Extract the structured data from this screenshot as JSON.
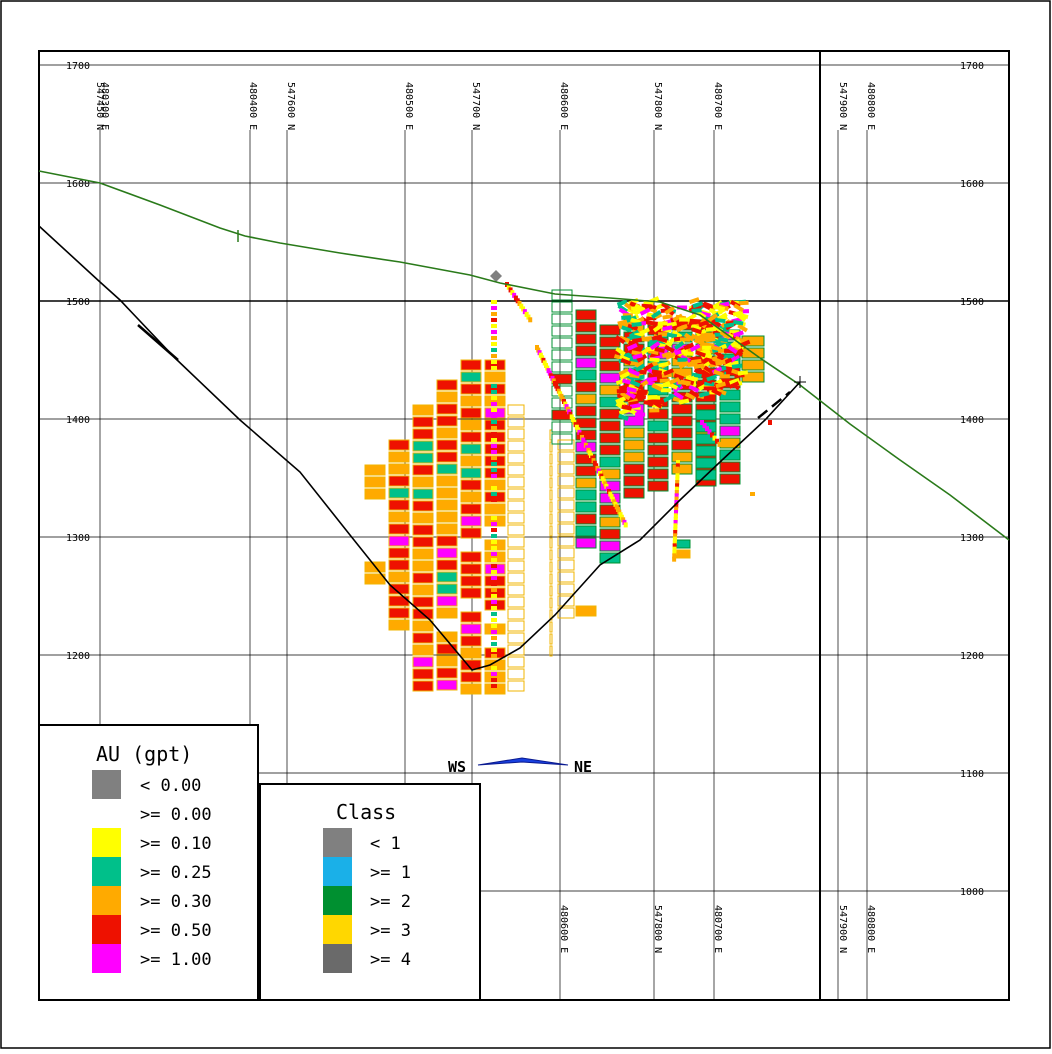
{
  "elevations": [
    "1700",
    "1600",
    "1500",
    "1400",
    "1300",
    "1200",
    "1100",
    "1000"
  ],
  "top_grid_labels": [
    "480300 E",
    "547450 N",
    "480400 E",
    "547600 N",
    "480500 E",
    "547700 N",
    "480600 E",
    "547800 N",
    "480700 E",
    "547900 N",
    "480800 E"
  ],
  "bottom_grid_labels": [
    "480600 E",
    "547800 N",
    "480700 E",
    "547900 N",
    "480800 E"
  ],
  "orientation": {
    "left": "WS",
    "right": "NE"
  },
  "au_legend": {
    "title": "AU (gpt)",
    "entries": [
      {
        "label": "<  0.00",
        "color": "#808080"
      },
      {
        "label": ">= 0.00",
        "color": "#ffffff"
      },
      {
        "label": ">= 0.10",
        "color": "#ffff00"
      },
      {
        "label": ">= 0.25",
        "color": "#00c08a"
      },
      {
        "label": ">= 0.30",
        "color": "#ffaa00"
      },
      {
        "label": ">= 0.50",
        "color": "#ee1100"
      },
      {
        "label": ">= 1.00",
        "color": "#ff00ff"
      }
    ]
  },
  "class_legend": {
    "title": "Class",
    "entries": [
      {
        "label": "<   1",
        "color": "#808080"
      },
      {
        "label": ">=  1",
        "color": "#1ab0e8"
      },
      {
        "label": ">=  2",
        "color": "#009030"
      },
      {
        "label": ">=  3",
        "color": "#ffd700"
      },
      {
        "label": ">=  4",
        "color": "#6a6a6a"
      }
    ]
  },
  "colors": {
    "topography": "#2a7a1a",
    "pit": "#000000",
    "class2_outline": "#009030",
    "class3_outline": "#f0b400",
    "au_030": "#ffaa00",
    "au_050": "#ee1100",
    "au_100": "#ff00ff",
    "au_025": "#00c08a",
    "au_010": "#ffff00"
  }
}
